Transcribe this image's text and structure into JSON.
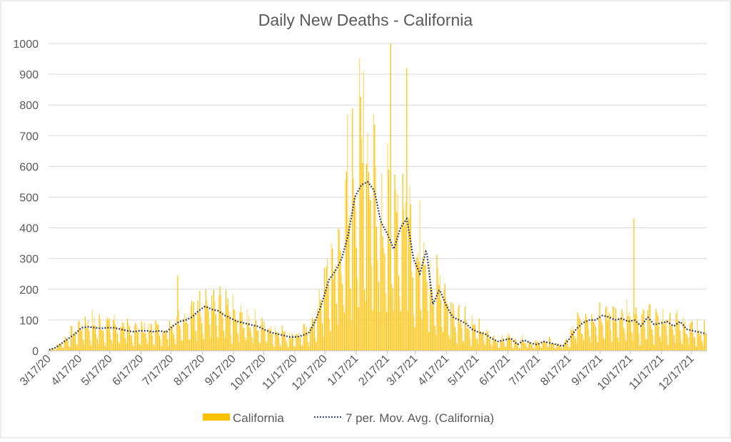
{
  "chart_data": {
    "type": "bar",
    "title": "Daily New Deaths - California",
    "xlabel": "",
    "ylabel": "",
    "ylim": [
      0,
      1000
    ],
    "yticks": [
      "0",
      "100",
      "200",
      "300",
      "400",
      "500",
      "600",
      "700",
      "800",
      "900",
      "1000"
    ],
    "grid": true,
    "legend_position": "bottom",
    "start_date": "2020-03-17",
    "days": 655,
    "xticks": [
      "3/17/20",
      "4/17/20",
      "5/17/20",
      "6/17/20",
      "7/17/20",
      "8/17/20",
      "9/17/20",
      "10/17/20",
      "11/17/20",
      "12/17/20",
      "1/17/21",
      "2/17/21",
      "3/17/21",
      "4/17/21",
      "5/17/21",
      "6/17/21",
      "7/17/21",
      "8/17/21",
      "9/17/21",
      "10/17/21",
      "11/17/21",
      "12/17/21"
    ],
    "series": [
      {
        "name": "California",
        "kind": "bar",
        "color": "#FFC000",
        "color_alt": "#FFD966",
        "weekday_factors": [
          0.3,
          1.4,
          1.3,
          1.2,
          1.1,
          0.9,
          0.5
        ],
        "spikes": [
          {
            "day": 128,
            "value": 245
          },
          {
            "day": 297,
            "value": 770
          },
          {
            "day": 313,
            "value": 910
          },
          {
            "day": 340,
            "value": 1000
          },
          {
            "day": 356,
            "value": 920
          },
          {
            "day": 369,
            "value": 490
          },
          {
            "day": 582,
            "value": 430
          }
        ]
      },
      {
        "name": "7 per. Mov. Avg. (California)",
        "kind": "line",
        "color": "#203864",
        "weekly_values": [
          3,
          10,
          25,
          40,
          55,
          75,
          78,
          75,
          73,
          75,
          75,
          70,
          65,
          62,
          65,
          65,
          62,
          65,
          60,
          80,
          95,
          100,
          110,
          130,
          145,
          135,
          130,
          115,
          105,
          95,
          90,
          85,
          80,
          70,
          60,
          55,
          50,
          45,
          45,
          50,
          60,
          100,
          160,
          230,
          260,
          300,
          380,
          500,
          540,
          550,
          520,
          420,
          380,
          330,
          400,
          430,
          300,
          250,
          330,
          150,
          200,
          150,
          110,
          100,
          90,
          70,
          60,
          55,
          40,
          30,
          35,
          40,
          20,
          35,
          25,
          20,
          30,
          25,
          20,
          15,
          40,
          70,
          90,
          100,
          100,
          115,
          110,
          100,
          105,
          95,
          100,
          80,
          110,
          85,
          90,
          95,
          80,
          95,
          70,
          65,
          60,
          55
        ]
      }
    ]
  }
}
